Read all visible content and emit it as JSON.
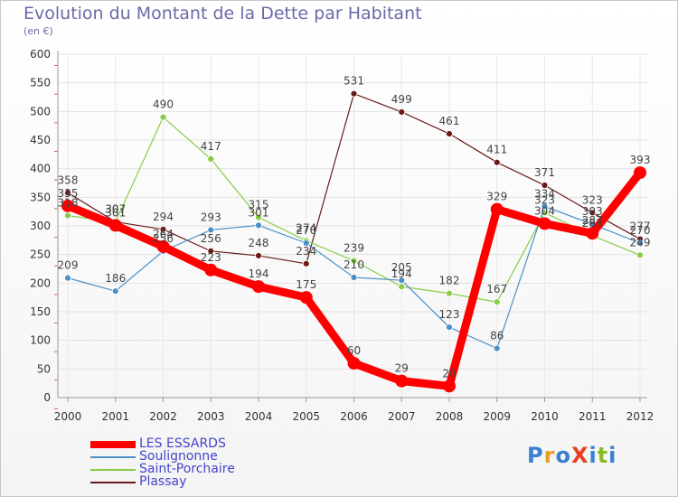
{
  "header": {
    "title": "Evolution du Montant de la Dette par Habitant",
    "subtitle": "(en €)"
  },
  "logo": {
    "text": "ProXiti"
  },
  "chart_data": {
    "type": "line",
    "title": "Evolution du Montant de la Dette par Habitant",
    "subtitle": "(en €)",
    "x": [
      "2000",
      "2001",
      "2002",
      "2003",
      "2004",
      "2005",
      "2006",
      "2007",
      "2008",
      "2009",
      "2010",
      "2011",
      "2012"
    ],
    "ylim": [
      0,
      600
    ],
    "yticks": [
      0,
      50,
      100,
      150,
      200,
      250,
      300,
      350,
      400,
      450,
      500,
      550,
      600
    ],
    "grid": true,
    "legend_position": "bottom-left",
    "series": [
      {
        "name": "LES ESSARDS",
        "color": "#ff0000",
        "values": [
          335,
          301,
          264,
          223,
          194,
          175,
          60,
          29,
          20,
          329,
          304,
          287,
          393
        ]
      },
      {
        "name": "Soulignonne",
        "color": "#4a90c8",
        "values": [
          209,
          186,
          256,
          293,
          301,
          270,
          210,
          205,
          123,
          86,
          334,
          303,
          270
        ]
      },
      {
        "name": "Saint-Porchaire",
        "color": "#88cc44",
        "values": [
          318,
          307,
          490,
          417,
          315,
          274,
          239,
          194,
          182,
          167,
          323,
          283,
          249
        ]
      },
      {
        "name": "Plassay",
        "color": "#6b1a1a",
        "values": [
          358,
          307,
          294,
          256,
          248,
          234,
          531,
          499,
          461,
          411,
          371,
          323,
          277
        ]
      }
    ]
  }
}
